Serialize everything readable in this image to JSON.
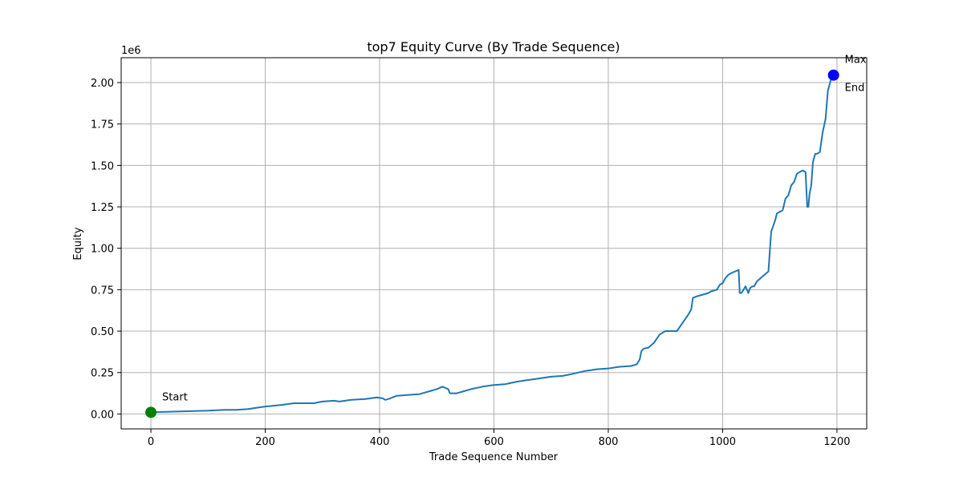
{
  "chart_data": {
    "type": "line",
    "title": "top7 Equity Curve (By Trade Sequence)",
    "xlabel": "Trade Sequence Number",
    "ylabel": "Equity",
    "y_offset_label": "1e6",
    "xlim": [
      -52,
      1252
    ],
    "ylim": [
      -0.09,
      2.15
    ],
    "x_ticks": [
      0,
      200,
      400,
      600,
      800,
      1000,
      1200
    ],
    "x_tick_labels": [
      "0",
      "200",
      "400",
      "600",
      "800",
      "1000",
      "1200"
    ],
    "y_ticks": [
      0.0,
      0.25,
      0.5,
      0.75,
      1.0,
      1.25,
      1.5,
      1.75,
      2.0
    ],
    "y_tick_labels": [
      "0.00",
      "0.25",
      "0.50",
      "0.75",
      "1.00",
      "1.25",
      "1.50",
      "1.75",
      "2.00"
    ],
    "grid": true,
    "series": [
      {
        "color": "#1f77b4",
        "x": [
          0,
          50,
          100,
          130,
          150,
          170,
          190,
          200,
          230,
          250,
          270,
          285,
          300,
          320,
          330,
          350,
          375,
          395,
          405,
          410,
          415,
          430,
          450,
          470,
          490,
          500,
          510,
          520,
          523,
          535,
          545,
          560,
          580,
          600,
          620,
          640,
          660,
          680,
          700,
          720,
          735,
          760,
          780,
          800,
          820,
          840,
          850,
          855,
          858,
          862,
          870,
          880,
          890,
          900,
          920,
          930,
          940,
          945,
          948,
          955,
          965,
          975,
          980,
          990,
          995,
          1000,
          1005,
          1010,
          1015,
          1022,
          1028,
          1030,
          1033,
          1040,
          1045,
          1048,
          1052,
          1055,
          1060,
          1070,
          1080,
          1085,
          1088,
          1092,
          1095,
          1100,
          1105,
          1110,
          1115,
          1120,
          1125,
          1130,
          1135,
          1140,
          1145,
          1148,
          1150,
          1152,
          1155,
          1158,
          1162,
          1165,
          1170,
          1175,
          1180,
          1184,
          1188,
          1190,
          1194
        ],
        "values": [
          0.01,
          0.015,
          0.02,
          0.025,
          0.025,
          0.03,
          0.04,
          0.045,
          0.055,
          0.065,
          0.065,
          0.065,
          0.075,
          0.08,
          0.075,
          0.085,
          0.09,
          0.1,
          0.095,
          0.085,
          0.09,
          0.11,
          0.115,
          0.12,
          0.14,
          0.15,
          0.165,
          0.15,
          0.125,
          0.125,
          0.135,
          0.15,
          0.165,
          0.175,
          0.18,
          0.195,
          0.205,
          0.215,
          0.225,
          0.23,
          0.24,
          0.26,
          0.27,
          0.275,
          0.285,
          0.29,
          0.3,
          0.33,
          0.38,
          0.395,
          0.4,
          0.43,
          0.48,
          0.5,
          0.5,
          0.55,
          0.6,
          0.63,
          0.7,
          0.71,
          0.72,
          0.73,
          0.74,
          0.75,
          0.78,
          0.79,
          0.82,
          0.84,
          0.85,
          0.86,
          0.87,
          0.73,
          0.73,
          0.77,
          0.73,
          0.76,
          0.77,
          0.77,
          0.8,
          0.83,
          0.86,
          1.1,
          1.13,
          1.17,
          1.21,
          1.22,
          1.23,
          1.3,
          1.32,
          1.38,
          1.4,
          1.45,
          1.46,
          1.47,
          1.46,
          1.25,
          1.25,
          1.33,
          1.38,
          1.52,
          1.57,
          1.57,
          1.58,
          1.7,
          1.78,
          1.95,
          2.0,
          2.03,
          2.045
        ]
      }
    ],
    "markers": [
      {
        "x": 0,
        "y": 0.01,
        "color": "#008000"
      },
      {
        "x": 1194,
        "y": 2.045,
        "color": "#0000ff"
      }
    ],
    "annotations": [
      {
        "text": "Start",
        "x": 0,
        "y": 0.01,
        "dx": 14,
        "dy": -15
      },
      {
        "text": "Max",
        "x": 1194,
        "y": 2.045,
        "dx": 14,
        "dy": -15
      },
      {
        "text": "End",
        "x": 1194,
        "y": 2.045,
        "dx": 14,
        "dy": 20
      }
    ]
  }
}
